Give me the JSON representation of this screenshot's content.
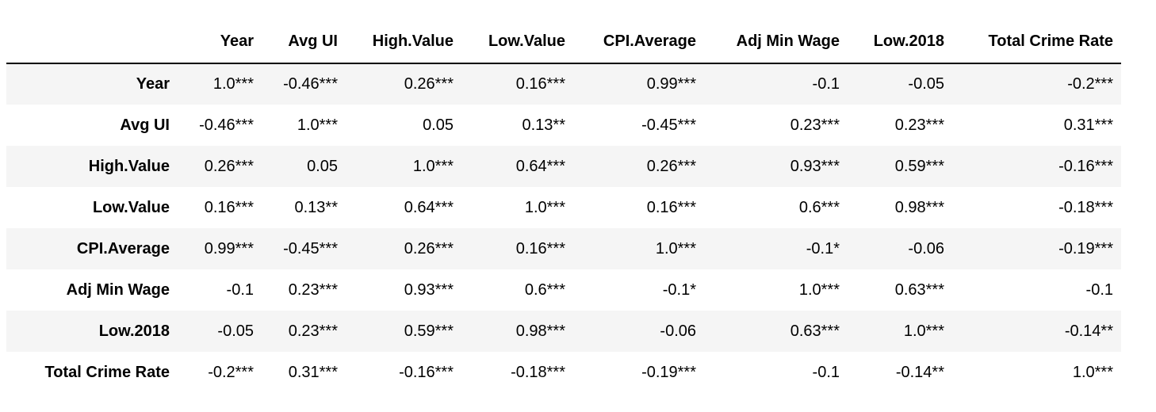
{
  "table": {
    "columns": [
      "",
      "Year",
      "Avg UI",
      "High.Value",
      "Low.Value",
      "CPI.Average",
      "Adj Min Wage",
      "Low.2018",
      "Total Crime Rate"
    ],
    "rows": [
      {
        "label": "Year",
        "cells": [
          "1.0***",
          "-0.46***",
          "0.26***",
          "0.16***",
          "0.99***",
          "-0.1",
          "-0.05",
          "-0.2***"
        ]
      },
      {
        "label": "Avg UI",
        "cells": [
          "-0.46***",
          "1.0***",
          "0.05",
          "0.13**",
          "-0.45***",
          "0.23***",
          "0.23***",
          "0.31***"
        ]
      },
      {
        "label": "High.Value",
        "cells": [
          "0.26***",
          "0.05",
          "1.0***",
          "0.64***",
          "0.26***",
          "0.93***",
          "0.59***",
          "-0.16***"
        ]
      },
      {
        "label": "Low.Value",
        "cells": [
          "0.16***",
          "0.13**",
          "0.64***",
          "1.0***",
          "0.16***",
          "0.6***",
          "0.98***",
          "-0.18***"
        ]
      },
      {
        "label": "CPI.Average",
        "cells": [
          "0.99***",
          "-0.45***",
          "0.26***",
          "0.16***",
          "1.0***",
          "-0.1*",
          "-0.06",
          "-0.19***"
        ]
      },
      {
        "label": "Adj Min Wage",
        "cells": [
          "-0.1",
          "0.23***",
          "0.93***",
          "0.6***",
          "-0.1*",
          "1.0***",
          "0.63***",
          "-0.1"
        ]
      },
      {
        "label": "Low.2018",
        "cells": [
          "-0.05",
          "0.23***",
          "0.59***",
          "0.98***",
          "-0.06",
          "0.63***",
          "1.0***",
          "-0.14**"
        ]
      },
      {
        "label": "Total Crime Rate",
        "cells": [
          "-0.2***",
          "0.31***",
          "-0.16***",
          "-0.18***",
          "-0.19***",
          "-0.1",
          "-0.14**",
          "1.0***"
        ]
      }
    ]
  },
  "colors": {
    "stripe": "#f5f5f5",
    "background": "#ffffff",
    "text": "#000000",
    "rule": "#000000"
  }
}
